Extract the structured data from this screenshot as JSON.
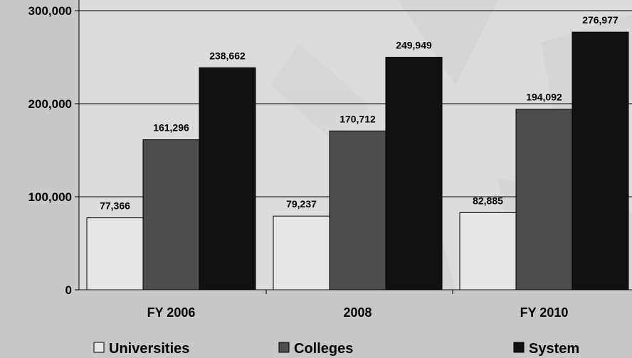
{
  "chart_data": {
    "type": "bar",
    "categories": [
      "FY 2006",
      "2008",
      "FY 2010"
    ],
    "series": [
      {
        "name": "Universities",
        "values": [
          77366,
          79237,
          82885
        ],
        "color": "#e6e6e6"
      },
      {
        "name": "Colleges",
        "values": [
          161296,
          170712,
          194092
        ],
        "color": "#4d4d4d"
      },
      {
        "name": "System",
        "values": [
          238662,
          249949,
          276977
        ],
        "color": "#111111"
      }
    ],
    "data_labels": [
      [
        "77,366",
        "161,296",
        "238,662"
      ],
      [
        "79,237",
        "170,712",
        "249,949"
      ],
      [
        "82,885",
        "194,092",
        "276,977"
      ]
    ],
    "yticks": [
      0,
      100000,
      200000,
      300000
    ],
    "ytick_labels": [
      "0",
      "100,000",
      "200,000",
      "300,000"
    ],
    "ylim": [
      0,
      300000
    ],
    "grid": true,
    "legend_position": "bottom",
    "legend_labels": [
      "Universities",
      "Colleges",
      "System"
    ],
    "title": "",
    "xlabel": "",
    "ylabel": ""
  }
}
